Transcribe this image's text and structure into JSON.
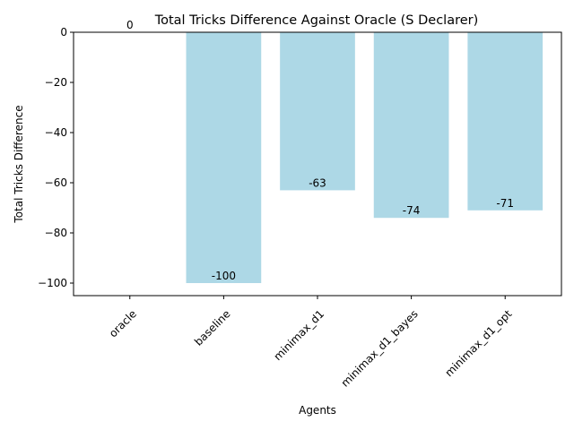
{
  "chart_data": {
    "type": "bar",
    "title": "Total Tricks Difference Against Oracle (S Declarer)",
    "xlabel": "Agents",
    "ylabel": "Total Tricks Difference",
    "categories": [
      "oracle",
      "baseline",
      "minimax_d1",
      "minimax_d1_bayes",
      "minimax_d1_opt"
    ],
    "values": [
      0,
      -100,
      -63,
      -74,
      -71
    ],
    "data_labels": [
      "0",
      "-100",
      "-63",
      "-74",
      "-71"
    ],
    "ylim": [
      -105,
      0
    ],
    "yticks": [
      0,
      -20,
      -40,
      -60,
      -80,
      -100
    ],
    "ytick_labels": [
      "0",
      "−20",
      "−40",
      "−60",
      "−80",
      "−100"
    ],
    "bar_color": "#add8e6",
    "grid": false,
    "xtick_rotation": 45
  }
}
